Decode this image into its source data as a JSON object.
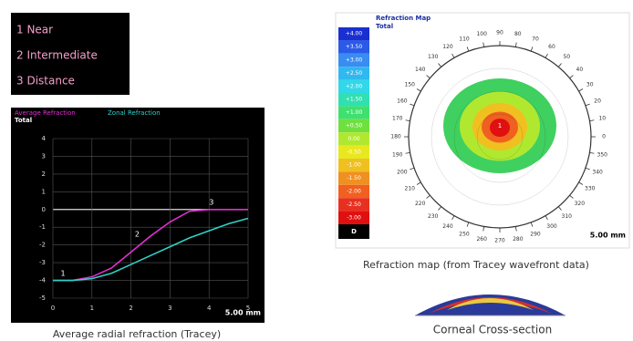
{
  "legend_box": {
    "items": [
      "1 Near",
      "2 Intermediate",
      "3 Distance"
    ]
  },
  "chart_data": [
    {
      "type": "line",
      "subtitle": "Total",
      "x": [
        0,
        0.5,
        1,
        1.5,
        2,
        2.5,
        3,
        3.5,
        4,
        4.5,
        5
      ],
      "series": [
        {
          "name": "Average Refraction",
          "color": "#e030d0",
          "values": [
            -4,
            -4,
            -3.8,
            -3.3,
            -2.4,
            -1.5,
            -0.7,
            -0.1,
            0,
            0,
            0
          ]
        },
        {
          "name": "Zonal Refraction",
          "color": "#30d0c8",
          "values": [
            -4,
            -4,
            -3.9,
            -3.6,
            -3.1,
            -2.6,
            -2.1,
            -1.6,
            -1.2,
            -0.8,
            -0.5
          ]
        }
      ],
      "markers": [
        {
          "label": "1",
          "x": 0.2,
          "y": -3.6
        },
        {
          "label": "2",
          "x": 2.1,
          "y": -1.4
        },
        {
          "label": "3",
          "x": 4.0,
          "y": 0.4
        }
      ],
      "xlim": [
        0,
        5
      ],
      "ylim": [
        -5,
        4
      ],
      "xticks": [
        0,
        1,
        2,
        3,
        4,
        5
      ],
      "yticks": [
        -5,
        -4,
        -3,
        -2,
        -1,
        0,
        1,
        2,
        3,
        4
      ],
      "grid": true,
      "scale_label": "5.00 mm",
      "caption": "Average radial refraction (Tracey)"
    },
    {
      "type": "polar-map",
      "title": "Refraction Map",
      "subtitle": "Total",
      "color_scale": {
        "labels": [
          "+4.00",
          "+3.50",
          "+3.00",
          "+2.50",
          "+2.00",
          "+1.50",
          "+1.00",
          "+0.50",
          "0.00",
          "-0.50",
          "-1.00",
          "-1.50",
          "-2.00",
          "-2.50",
          "-3.00"
        ],
        "colors": [
          "#1a2fd0",
          "#2a5ae8",
          "#3a8cf0",
          "#30b8f0",
          "#30d8e8",
          "#30e0b0",
          "#40e070",
          "#70e040",
          "#b0e830",
          "#e8e820",
          "#f0c020",
          "#f09020",
          "#f06020",
          "#e83020",
          "#e01010"
        ],
        "unit": "D"
      },
      "angle_ticks": [
        0,
        10,
        20,
        30,
        40,
        50,
        60,
        70,
        80,
        90,
        100,
        110,
        120,
        130,
        140,
        150,
        160,
        170,
        180,
        190,
        200,
        210,
        220,
        230,
        240,
        250,
        260,
        270,
        280,
        290,
        300,
        310,
        320,
        330,
        340,
        350
      ],
      "center_label": "1",
      "scale_label": "5.00 mm",
      "caption": "Refraction map (from Tracey wavefront data)"
    }
  ],
  "cross_section": {
    "caption": "Corneal Cross-section"
  }
}
